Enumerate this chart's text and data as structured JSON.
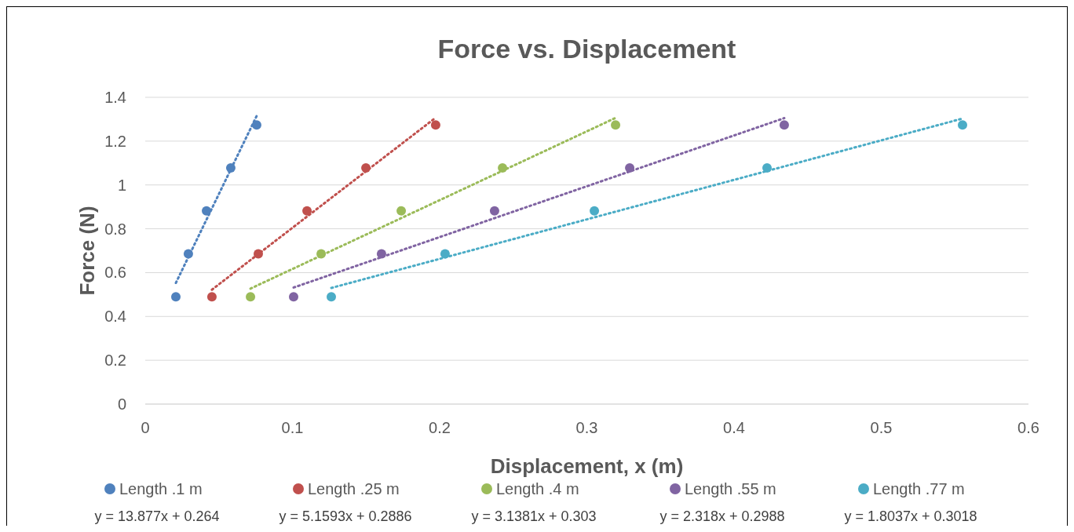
{
  "chart_data": {
    "type": "scatter",
    "title": "Force vs. Displacement",
    "xlabel": "Displacement, x (m)",
    "ylabel": "Force (N)",
    "xlim": [
      0,
      0.6
    ],
    "xticks": [
      0,
      0.1,
      0.2,
      0.3,
      0.4,
      0.5,
      0.6
    ],
    "ylim": [
      0,
      1.4
    ],
    "yticks": [
      0,
      0.2,
      0.4,
      0.6,
      0.8,
      1,
      1.2,
      1.4
    ],
    "grid": "y",
    "legend": "bottom",
    "marker": "circle",
    "series": [
      {
        "name": "Length .1 m",
        "color": "#4f81bd",
        "x": [
          0.0208,
          0.0293,
          0.0416,
          0.0581,
          0.0757
        ],
        "values": [
          0.49,
          0.686,
          0.882,
          1.078,
          1.274
        ]
      },
      {
        "name": "Length .25 m",
        "color": "#c0504d",
        "x": [
          0.0453,
          0.0768,
          0.1099,
          0.1499,
          0.1973
        ],
        "values": [
          0.49,
          0.686,
          0.882,
          1.078,
          1.274
        ]
      },
      {
        "name": "Length .4 m",
        "color": "#9bbb59",
        "x": [
          0.0715,
          0.1195,
          0.1739,
          0.2427,
          0.3195
        ],
        "values": [
          0.49,
          0.686,
          0.882,
          1.078,
          1.274
        ]
      },
      {
        "name": "Length .55 m",
        "color": "#8064a2",
        "x": [
          0.1008,
          0.1605,
          0.2373,
          0.3291,
          0.4341
        ],
        "values": [
          0.49,
          0.686,
          0.882,
          1.078,
          1.274
        ]
      },
      {
        "name": "Length .77 m",
        "color": "#4bacc6",
        "x": [
          0.1264,
          0.2037,
          0.3051,
          0.4224,
          0.5552
        ],
        "values": [
          0.49,
          0.686,
          0.882,
          1.078,
          1.274
        ]
      },
      {
        "type": "line",
        "line_style": "dotted",
        "marker": "none",
        "color": "#4f81bd",
        "x": [
          0.0208,
          0.0757
        ],
        "values": [
          0.553,
          1.315
        ]
      },
      {
        "type": "line",
        "line_style": "dotted",
        "marker": "none",
        "color": "#c0504d",
        "x": [
          0.0453,
          0.1973
        ],
        "values": [
          0.522,
          1.307
        ]
      },
      {
        "type": "line",
        "line_style": "dotted",
        "marker": "none",
        "color": "#9bbb59",
        "x": [
          0.0715,
          0.3195
        ],
        "values": [
          0.527,
          1.306
        ]
      },
      {
        "type": "line",
        "line_style": "dotted",
        "marker": "none",
        "color": "#8064a2",
        "x": [
          0.1008,
          0.4341
        ],
        "values": [
          0.532,
          1.305
        ]
      },
      {
        "type": "line",
        "line_style": "dotted",
        "marker": "none",
        "color": "#4bacc6",
        "x": [
          0.1264,
          0.5552
        ],
        "values": [
          0.53,
          1.303
        ]
      }
    ],
    "annotations": [
      "y = 13.877x + 0.264",
      "y = 5.1593x + 0.2886",
      "y = 3.1381x + 0.303",
      "y = 2.318x + 0.2988",
      "y = 1.8037x + 0.3018"
    ]
  }
}
